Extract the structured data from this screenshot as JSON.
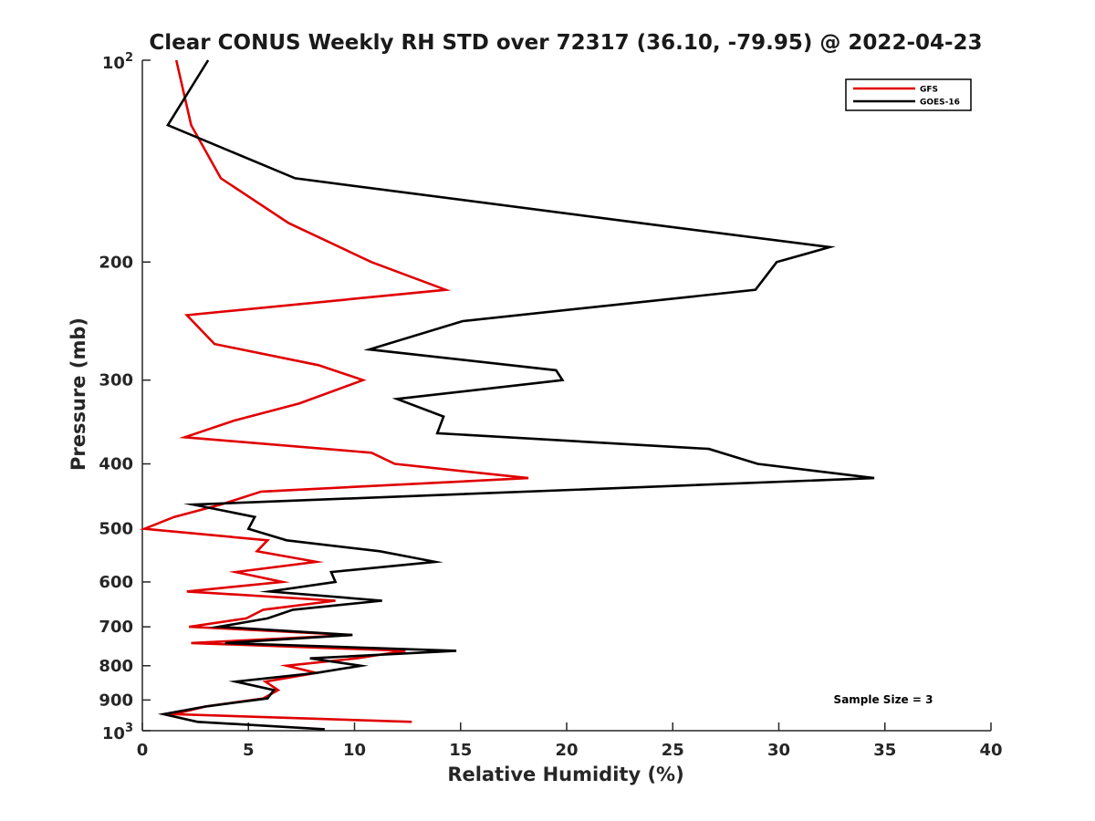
{
  "chart_data": {
    "type": "line",
    "title": "Clear CONUS Weekly RH STD over 72317 (36.10, -79.95) @ 2022-04-23",
    "xlabel": "Relative Humidity (%)",
    "ylabel": "Pressure (mb)",
    "xlim": [
      0,
      40
    ],
    "ylim": [
      100,
      1000
    ],
    "y_scale": "log",
    "y_reversed": true,
    "x_ticks": [
      0,
      5,
      10,
      15,
      20,
      25,
      30,
      35,
      40
    ],
    "x_tick_labels": [
      "0",
      "5",
      "10",
      "15",
      "20",
      "25",
      "30",
      "35",
      "40"
    ],
    "y_ticks": [
      200,
      300,
      400,
      500,
      600,
      700,
      800,
      900
    ],
    "y_tick_labels": [
      "200",
      "300",
      "400",
      "500",
      "600",
      "700",
      "800",
      "900"
    ],
    "y_end_ticks": [
      {
        "value": 100,
        "base": "10",
        "exp": "2"
      },
      {
        "value": 1000,
        "base": "10",
        "exp": "3"
      }
    ],
    "grid": false,
    "legend_position": "top-right",
    "annotation": "Sample Size = 3",
    "series": [
      {
        "name": "GFS",
        "color": "#e00000",
        "points": [
          [
            1.6,
            100
          ],
          [
            2.3,
            125
          ],
          [
            3.7,
            150
          ],
          [
            6.9,
            175
          ],
          [
            10.8,
            200
          ],
          [
            14.3,
            220
          ],
          [
            2.1,
            240
          ],
          [
            3.4,
            265
          ],
          [
            8.3,
            285
          ],
          [
            10.4,
            300
          ],
          [
            7.4,
            325
          ],
          [
            4.3,
            345
          ],
          [
            2.0,
            365
          ],
          [
            10.8,
            385
          ],
          [
            11.9,
            400
          ],
          [
            18.2,
            420
          ],
          [
            5.6,
            440
          ],
          [
            3.7,
            460
          ],
          [
            1.5,
            480
          ],
          [
            0.1,
            500
          ],
          [
            5.9,
            520
          ],
          [
            5.4,
            540
          ],
          [
            8.2,
            560
          ],
          [
            4.4,
            580
          ],
          [
            6.6,
            600
          ],
          [
            2.1,
            620
          ],
          [
            9.1,
            640
          ],
          [
            5.7,
            660
          ],
          [
            4.9,
            680
          ],
          [
            2.2,
            700
          ],
          [
            9.9,
            720
          ],
          [
            2.3,
            740
          ],
          [
            12.4,
            760
          ],
          [
            10.1,
            780
          ],
          [
            6.8,
            800
          ],
          [
            8.2,
            820
          ],
          [
            5.8,
            845
          ],
          [
            6.4,
            870
          ],
          [
            5.7,
            895
          ],
          [
            3.0,
            920
          ],
          [
            1.5,
            945
          ],
          [
            12.7,
            970
          ]
        ]
      },
      {
        "name": "GOES-16",
        "color": "#000000",
        "points": [
          [
            3.1,
            100
          ],
          [
            1.2,
            125
          ],
          [
            7.2,
            150
          ],
          [
            23.5,
            175
          ],
          [
            32.4,
            190
          ],
          [
            29.9,
            200
          ],
          [
            28.9,
            220
          ],
          [
            15.1,
            245
          ],
          [
            10.7,
            270
          ],
          [
            19.5,
            290
          ],
          [
            19.8,
            300
          ],
          [
            12.0,
            320
          ],
          [
            14.2,
            340
          ],
          [
            13.9,
            360
          ],
          [
            26.7,
            380
          ],
          [
            29.0,
            400
          ],
          [
            34.5,
            420
          ],
          [
            2.4,
            460
          ],
          [
            5.3,
            480
          ],
          [
            5.0,
            500
          ],
          [
            6.8,
            520
          ],
          [
            11.2,
            540
          ],
          [
            13.8,
            560
          ],
          [
            8.9,
            580
          ],
          [
            9.1,
            600
          ],
          [
            6.0,
            620
          ],
          [
            11.3,
            640
          ],
          [
            7.1,
            660
          ],
          [
            5.9,
            680
          ],
          [
            3.6,
            700
          ],
          [
            9.9,
            720
          ],
          [
            3.9,
            740
          ],
          [
            14.8,
            760
          ],
          [
            7.9,
            780
          ],
          [
            10.3,
            800
          ],
          [
            8.2,
            820
          ],
          [
            4.4,
            845
          ],
          [
            6.2,
            870
          ],
          [
            5.9,
            895
          ],
          [
            3.0,
            920
          ],
          [
            1.0,
            945
          ],
          [
            2.6,
            970
          ],
          [
            8.6,
            995
          ]
        ]
      }
    ]
  }
}
